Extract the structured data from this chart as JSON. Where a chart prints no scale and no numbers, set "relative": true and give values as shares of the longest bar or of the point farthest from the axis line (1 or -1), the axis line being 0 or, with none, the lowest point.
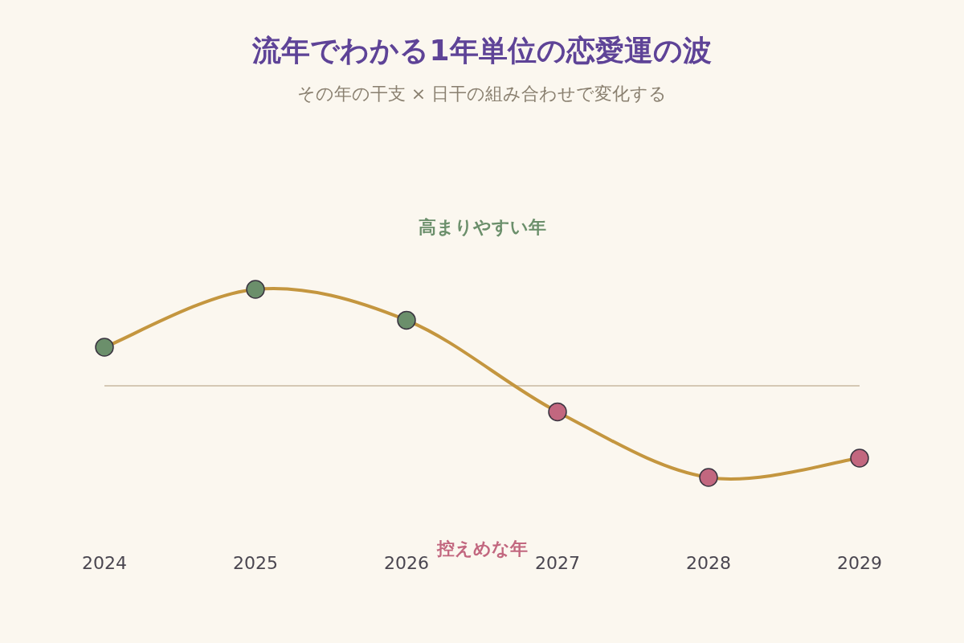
{
  "chart_data": {
    "type": "line",
    "relative": true,
    "title": "流年でわかる1年単位の恋愛運の波",
    "subtitle": "その年の干支 × 日干の組み合わせで変化する",
    "categories": [
      "2024",
      "2025",
      "2026",
      "2027",
      "2028",
      "2029"
    ],
    "series": [
      {
        "color": "#c4963f",
        "colors": [
          "#6b8f6b",
          "#6b8f6b",
          "#6b8f6b",
          "#c2677f",
          "#c2677f",
          "#c2677f"
        ],
        "values": [
          0.4,
          1,
          0.68,
          -0.27,
          -0.95,
          -0.75
        ]
      }
    ],
    "marker": "circle",
    "ref_lines": [
      {
        "axis": "y",
        "value": 0,
        "color": "#c9b9a0"
      }
    ],
    "annotations": [
      "高まりやすい年",
      "控えめな年"
    ]
  }
}
